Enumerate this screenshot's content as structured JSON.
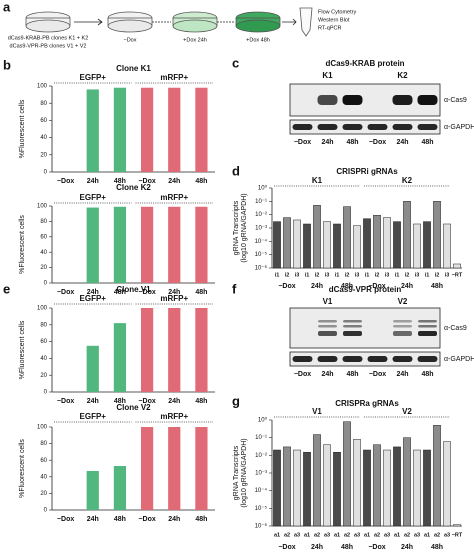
{
  "panel_letters": [
    "a",
    "b",
    "c",
    "d",
    "e",
    "f",
    "g"
  ],
  "schematic": {
    "clones": [
      "dCas9-KRAB-PB clones K1 + K2",
      "dCas9-VPR-PB clones V1 + V2"
    ],
    "conditions": [
      "−Dox",
      "+Dox 24h",
      "+Dox 48h"
    ],
    "assays": [
      "Flow Cytometry",
      "Western Blot",
      "RT-qPCR"
    ]
  },
  "blots": [
    {
      "title": "dCas9-KRAB protein",
      "clones": [
        "K1",
        "K2"
      ],
      "lanes": [
        "−Dox",
        "24h",
        "48h",
        "−Dox",
        "24h",
        "48h"
      ],
      "antibodies": [
        "α-Cas9",
        "α-GAPDH"
      ]
    },
    {
      "title": "dCas9-VPR protein",
      "clones": [
        "V1",
        "V2"
      ],
      "lanes": [
        "−Dox",
        "24h",
        "48h",
        "−Dox",
        "24h",
        "48h"
      ],
      "antibodies": [
        "α-Cas9",
        "α-GAPDH"
      ]
    }
  ],
  "chart_data": [
    {
      "type": "bar",
      "title": "Clone K1",
      "ylabel": "%Fluorescent cells",
      "groups": [
        "EGFP+",
        "mRFP+"
      ],
      "group_colors": [
        "#52b77f",
        "#e06b76"
      ],
      "categories": [
        "−Dox",
        "24h",
        "48h",
        "−Dox",
        "24h",
        "48h"
      ],
      "values": [
        0,
        96,
        98,
        98,
        98,
        98
      ],
      "ylim": [
        0,
        100
      ],
      "yticks": [
        0,
        20,
        40,
        60,
        80,
        100
      ]
    },
    {
      "type": "bar",
      "title": "Clone K2",
      "ylabel": "%Fluorescent cells",
      "groups": [
        "EGFP+",
        "mRFP+"
      ],
      "group_colors": [
        "#52b77f",
        "#e06b76"
      ],
      "categories": [
        "−Dox",
        "24h",
        "48h",
        "−Dox",
        "24h",
        "48h"
      ],
      "values": [
        0,
        98,
        99,
        99,
        99,
        99
      ],
      "ylim": [
        0,
        100
      ],
      "yticks": [
        0,
        20,
        40,
        60,
        80,
        100
      ]
    },
    {
      "type": "bar",
      "log_scale": true,
      "title": "CRISPRi gRNAs",
      "ylabel": [
        "gRNA Transcripts",
        "(log10 gRNA/GAPDH)"
      ],
      "groups": [
        "K1",
        "K2"
      ],
      "timepoints": [
        "−Dox",
        "24h",
        "48h",
        "−Dox",
        "24h",
        "48h"
      ],
      "colors": [
        "#4a4a4a",
        "#8c8c8c",
        "#e0e0e0"
      ],
      "categories": [
        "i1",
        "i2",
        "i3",
        "i1",
        "i2",
        "i3",
        "i1",
        "i2",
        "i3",
        "i1",
        "i2",
        "i3",
        "i1",
        "i2",
        "i3",
        "i1",
        "i2",
        "i3",
        "−RT"
      ],
      "values": [
        0.003,
        0.006,
        0.004,
        0.002,
        0.05,
        0.003,
        0.002,
        0.04,
        0.0015,
        0.005,
        0.009,
        0.006,
        0.003,
        0.1,
        0.002,
        0.003,
        0.1,
        0.002,
        2e-06
      ],
      "ylim": [
        1e-06,
        1
      ],
      "yticks": [
        {
          "value": 1,
          "label": "10⁰"
        },
        {
          "value": 0.1,
          "label": "10⁻¹"
        },
        {
          "value": 0.01,
          "label": "10⁻²"
        },
        {
          "value": 0.001,
          "label": "10⁻³"
        },
        {
          "value": 0.0001,
          "label": "10⁻⁴"
        },
        {
          "value": 1e-05,
          "label": "10⁻⁵"
        },
        {
          "value": 1e-06,
          "label": "10⁻⁶"
        }
      ]
    },
    {
      "type": "bar",
      "title": "Clone V1",
      "ylabel": "%Fluorescent cells",
      "groups": [
        "EGFP+",
        "mRFP+"
      ],
      "group_colors": [
        "#52b77f",
        "#e06b76"
      ],
      "categories": [
        "−Dox",
        "24h",
        "48h",
        "−Dox",
        "24h",
        "48h"
      ],
      "values": [
        0,
        55,
        82,
        100,
        100,
        100
      ],
      "ylim": [
        0,
        100
      ],
      "yticks": [
        0,
        20,
        40,
        60,
        80,
        100
      ]
    },
    {
      "type": "bar",
      "title": "Clone V2",
      "ylabel": "%Fluorescent cells",
      "groups": [
        "EGFP+",
        "mRFP+"
      ],
      "group_colors": [
        "#52b77f",
        "#e06b76"
      ],
      "categories": [
        "−Dox",
        "24h",
        "48h",
        "−Dox",
        "24h",
        "48h"
      ],
      "values": [
        0,
        47,
        53,
        100,
        100,
        100
      ],
      "ylim": [
        0,
        100
      ],
      "yticks": [
        0,
        20,
        40,
        60,
        80,
        100
      ]
    },
    {
      "type": "bar",
      "log_scale": true,
      "title": "CRISPRa gRNAs",
      "ylabel": [
        "gRNA Transcripts",
        "(log10 gRNA/GAPDH)"
      ],
      "groups": [
        "V1",
        "V2"
      ],
      "timepoints": [
        "−Dox",
        "24h",
        "48h",
        "−Dox",
        "24h",
        "48h"
      ],
      "colors": [
        "#4a4a4a",
        "#8c8c8c",
        "#e0e0e0"
      ],
      "categories": [
        "a1",
        "a2",
        "a3",
        "a1",
        "a2",
        "a3",
        "a1",
        "a2",
        "a3",
        "a1",
        "a2",
        "a3",
        "a1",
        "a2",
        "a3",
        "a1",
        "a2",
        "a3",
        "−RT"
      ],
      "values": [
        0.02,
        0.03,
        0.02,
        0.015,
        0.15,
        0.04,
        0.015,
        0.8,
        0.08,
        0.02,
        0.04,
        0.02,
        0.03,
        0.1,
        0.02,
        0.02,
        0.5,
        0.06,
        1.2e-06
      ],
      "ylim": [
        1e-06,
        1
      ],
      "yticks": [
        {
          "value": 1,
          "label": "10⁰"
        },
        {
          "value": 0.1,
          "label": "10⁻¹"
        },
        {
          "value": 0.01,
          "label": "10⁻²"
        },
        {
          "value": 0.001,
          "label": "10⁻³"
        },
        {
          "value": 0.0001,
          "label": "10⁻⁴"
        },
        {
          "value": 1e-05,
          "label": "10⁻⁵"
        },
        {
          "value": 1e-06,
          "label": "10⁻⁶"
        }
      ]
    }
  ]
}
